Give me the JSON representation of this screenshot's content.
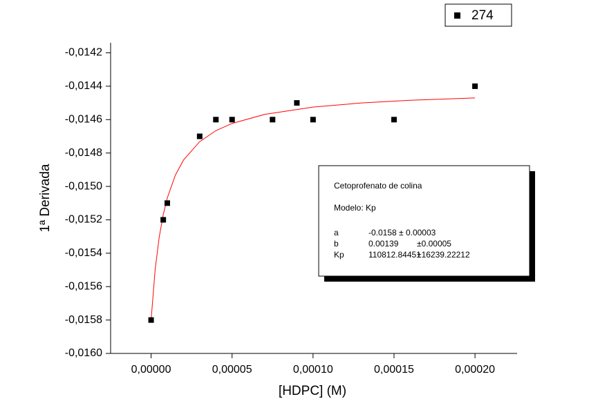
{
  "chart_data": {
    "type": "scatter",
    "x_label": "[HDPC] (M)",
    "y_label": "1ª Derivada",
    "xlim": [
      -2.5e-05,
      0.000226
    ],
    "ylim": [
      -0.016,
      -0.01414
    ],
    "xticks": [
      {
        "value": 0,
        "label": "0,00000"
      },
      {
        "value": 5e-05,
        "label": "0,00005"
      },
      {
        "value": 0.0001,
        "label": "0,00010"
      },
      {
        "value": 0.00015,
        "label": "0,00015"
      },
      {
        "value": 0.0002,
        "label": "0,00020"
      }
    ],
    "yticks": [
      {
        "value": -0.016,
        "label": "-0,0160"
      },
      {
        "value": -0.0158,
        "label": "-0,0158"
      },
      {
        "value": -0.0156,
        "label": "-0,0156"
      },
      {
        "value": -0.0154,
        "label": "-0,0154"
      },
      {
        "value": -0.0152,
        "label": "-0,0152"
      },
      {
        "value": -0.015,
        "label": "-0,0150"
      },
      {
        "value": -0.0148,
        "label": "-0,0148"
      },
      {
        "value": -0.0146,
        "label": "-0,0146"
      },
      {
        "value": -0.0144,
        "label": "-0,0144"
      },
      {
        "value": -0.0142,
        "label": "-0,0142"
      }
    ],
    "legend": "top-right",
    "series": [
      {
        "name": "274",
        "color": "#000000",
        "x": [
          0,
          7.5e-06,
          1e-05,
          3e-05,
          4e-05,
          5e-05,
          7.5e-05,
          9e-05,
          0.0001,
          0.00015,
          0.0002
        ],
        "values": [
          -0.0158,
          -0.0152,
          -0.0151,
          -0.0147,
          -0.0146,
          -0.0146,
          -0.0146,
          -0.0145,
          -0.0146,
          -0.0146,
          -0.0144
        ]
      }
    ],
    "fit_line": {
      "color": "#ff0000",
      "x": [
        0,
        2.5e-06,
        5e-06,
        7.5e-06,
        1e-05,
        1.5e-05,
        2e-05,
        3e-05,
        4e-05,
        5e-05,
        7e-05,
        0.0001,
        0.00013,
        0.00016,
        0.0002
      ],
      "values": [
        -0.0158,
        -0.015498,
        -0.015304,
        -0.015169,
        -0.015069,
        -0.014932,
        -0.014842,
        -0.014732,
        -0.014666,
        -0.014623,
        -0.014569,
        -0.014525,
        -0.0145,
        -0.014484,
        -0.01447
      ]
    },
    "annotation": {
      "title": "Cetoprofenato de colina",
      "model": "Modelo: Kp",
      "rows": [
        [
          "a",
          "-0.0158 ± 0.00003",
          ""
        ],
        [
          "b",
          "0.00139",
          "±0.00005"
        ],
        [
          "Kp",
          "110812.84451",
          "±16239.22212"
        ]
      ]
    }
  }
}
